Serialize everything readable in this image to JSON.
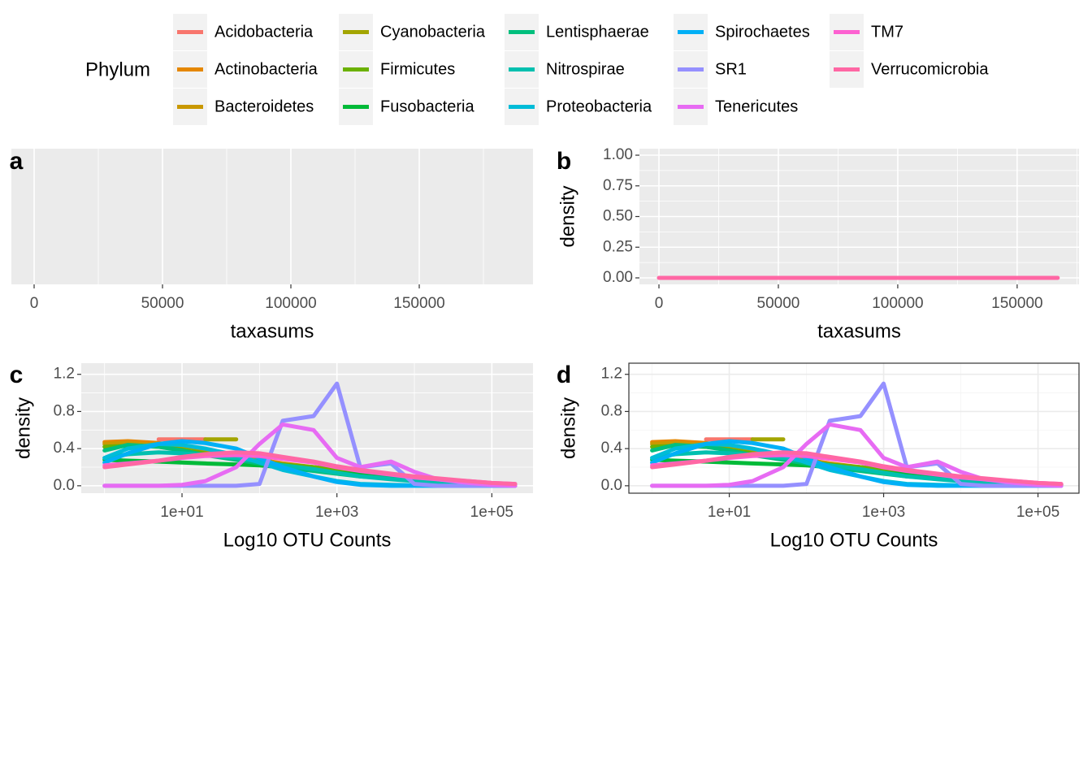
{
  "legend": {
    "title": "Phylum"
  },
  "chart_data": [
    {
      "type": "density",
      "panel_label": "a",
      "theme": "gray",
      "x_label": "taxasums",
      "xlim": [
        -8860,
        194300
      ],
      "xticks": [
        0,
        50000,
        100000,
        150000
      ],
      "minor_xticks": [
        25000,
        75000,
        125000,
        175000
      ],
      "x": [],
      "series": []
    },
    {
      "type": "density",
      "panel_label": "b",
      "theme": "gray",
      "x_label": "taxasums",
      "y_label": "density",
      "xlim": [
        -8170,
        175900
      ],
      "xticks": [
        0,
        50000,
        100000,
        150000
      ],
      "minor_xticks": [
        25000,
        75000,
        125000,
        175000
      ],
      "ylim": [
        -0.053,
        1.053
      ],
      "yticks": [
        {
          "value": 0,
          "label": "0.00"
        },
        {
          "value": 0.25,
          "label": "0.25"
        },
        {
          "value": 0.5,
          "label": "0.50"
        },
        {
          "value": 0.75,
          "label": "0.75"
        },
        {
          "value": 1,
          "label": "1.00"
        }
      ],
      "minor_yticks": [
        0.125,
        0.375,
        0.625,
        0.875
      ],
      "x": [
        0,
        167000
      ],
      "series": [
        {
          "name": "Verrucomicrobia",
          "color": "#FF67A4",
          "values": [
            0,
            0
          ]
        }
      ]
    },
    {
      "type": "density",
      "panel_label": "c",
      "theme": "gray",
      "x_label": "Log10 OTU Counts",
      "y_label": "density",
      "xscale": "log",
      "xlim": [
        0.5,
        340000
      ],
      "xticks": [
        {
          "value": 10,
          "label": "1e+01"
        },
        {
          "value": 1000,
          "label": "1e+03"
        },
        {
          "value": 100000,
          "label": "1e+05"
        }
      ],
      "minor_xticks": [
        1,
        100,
        10000
      ],
      "ylim": [
        -0.08,
        1.32
      ],
      "yticks": [
        {
          "value": 0,
          "label": "0.0"
        },
        0.4,
        0.8,
        1.2
      ],
      "minor_yticks": [
        0.2,
        0.6,
        1.0
      ],
      "x": [
        1,
        2,
        5,
        10,
        20,
        50,
        100,
        200,
        500,
        1000,
        2000,
        5000,
        10000,
        20000,
        50000,
        100000,
        200000
      ],
      "series": [
        {
          "name": "Acidobacteria",
          "color": "#F8766D",
          "values": [
            null,
            null,
            0.5,
            0.5,
            0.5,
            null,
            null,
            null,
            null,
            null,
            null,
            null,
            null,
            null,
            null,
            null,
            null
          ]
        },
        {
          "name": "Actinobacteria",
          "color": "#E58700",
          "values": [
            0.47,
            0.48,
            0.46,
            0.42,
            0.38,
            0.33,
            0.28,
            0.24,
            0.2,
            0.17,
            0.14,
            0.1,
            0.07,
            0.05,
            0.03,
            0.02,
            0.01
          ]
        },
        {
          "name": "Bacteroidetes",
          "color": "#C99800",
          "values": [
            0.45,
            0.46,
            0.44,
            0.4,
            0.36,
            0.31,
            0.27,
            0.23,
            0.2,
            0.17,
            0.15,
            0.12,
            0.09,
            0.06,
            0.04,
            0.02,
            0.01
          ]
        },
        {
          "name": "Cyanobacteria",
          "color": "#A3A500",
          "values": [
            null,
            null,
            null,
            null,
            0.5,
            0.5,
            null,
            null,
            null,
            null,
            null,
            null,
            null,
            null,
            null,
            null,
            null
          ]
        },
        {
          "name": "Firmicutes",
          "color": "#6BB100",
          "values": [
            0.42,
            0.43,
            0.42,
            0.39,
            0.35,
            0.3,
            0.26,
            0.23,
            0.2,
            0.17,
            0.14,
            0.11,
            0.08,
            0.06,
            0.04,
            0.02,
            0.01
          ]
        },
        {
          "name": "Fusobacteria",
          "color": "#00BA38",
          "values": [
            0.28,
            0.27,
            0.26,
            0.25,
            0.24,
            0.23,
            0.22,
            0.2,
            0.17,
            0.14,
            0.12,
            0.09,
            0.07,
            0.05,
            0.03,
            0.02,
            0.01
          ]
        },
        {
          "name": "Lentisphaerae",
          "color": "#00BF7D",
          "values": [
            0.38,
            0.44,
            0.42,
            0.38,
            0.33,
            0.28,
            0.24,
            0.2,
            0.16,
            0.13,
            0.1,
            0.08,
            0.06,
            0.04,
            0.03,
            0.02,
            0.01
          ]
        },
        {
          "name": "Nitrospirae",
          "color": "#00C0AF",
          "values": [
            0.3,
            0.34,
            0.36,
            0.35,
            0.33,
            0.3,
            0.26,
            0.22,
            0.18,
            0.14,
            0.1,
            0.07,
            0.05,
            0.03,
            0.02,
            0.01,
            0.01
          ]
        },
        {
          "name": "Proteobacteria",
          "color": "#00BCD8",
          "values": [
            0.3,
            0.4,
            0.45,
            0.44,
            0.4,
            0.33,
            0.25,
            0.17,
            0.1,
            0.05,
            0.02,
            0.01,
            0.005,
            0,
            0,
            0,
            0
          ]
        },
        {
          "name": "Spirochaetes",
          "color": "#00B0F6",
          "values": [
            0.25,
            0.35,
            0.45,
            0.48,
            0.46,
            0.4,
            0.3,
            0.2,
            0.1,
            0.04,
            0.01,
            0,
            0,
            0,
            0,
            0,
            0
          ]
        },
        {
          "name": "SR1",
          "color": "#9590FF",
          "values": [
            0,
            0,
            0,
            0,
            0,
            0,
            0.02,
            0.7,
            0.75,
            1.1,
            0.2,
            0.24,
            0.02,
            0,
            0,
            0,
            0
          ]
        },
        {
          "name": "Tenericutes",
          "color": "#E76BF3",
          "values": [
            0,
            0,
            0,
            0.01,
            0.05,
            0.2,
            0.45,
            0.66,
            0.6,
            0.3,
            0.2,
            0.26,
            0.15,
            0.07,
            0.03,
            0.01,
            0
          ]
        },
        {
          "name": "TM7",
          "color": "#FD61D1",
          "values": [
            0.22,
            0.24,
            0.27,
            0.3,
            0.32,
            0.33,
            0.32,
            0.29,
            0.25,
            0.2,
            0.16,
            0.12,
            0.09,
            0.07,
            0.05,
            0.03,
            0.02
          ]
        },
        {
          "name": "Verrucomicrobia",
          "color": "#FF67A4",
          "values": [
            0.2,
            0.23,
            0.27,
            0.31,
            0.34,
            0.36,
            0.35,
            0.31,
            0.26,
            0.21,
            0.17,
            0.13,
            0.1,
            0.08,
            0.05,
            0.03,
            0.02
          ]
        }
      ]
    },
    {
      "type": "density",
      "panel_label": "d",
      "theme": "bw",
      "x_label": "Log10 OTU Counts",
      "y_label": "density",
      "xscale": "log",
      "xlim": [
        0.5,
        340000
      ],
      "xticks": [
        {
          "value": 10,
          "label": "1e+01"
        },
        {
          "value": 1000,
          "label": "1e+03"
        },
        {
          "value": 100000,
          "label": "1e+05"
        }
      ],
      "minor_xticks": [
        1,
        100,
        10000
      ],
      "ylim": [
        -0.08,
        1.32
      ],
      "yticks": [
        {
          "value": 0,
          "label": "0.0"
        },
        0.4,
        0.8,
        1.2
      ],
      "minor_yticks": [
        0.2,
        0.6,
        1.0
      ],
      "x": [
        1,
        2,
        5,
        10,
        20,
        50,
        100,
        200,
        500,
        1000,
        2000,
        5000,
        10000,
        20000,
        50000,
        100000,
        200000
      ],
      "series": [
        {
          "name": "Acidobacteria",
          "color": "#F8766D",
          "values": [
            null,
            null,
            0.5,
            0.5,
            0.5,
            null,
            null,
            null,
            null,
            null,
            null,
            null,
            null,
            null,
            null,
            null,
            null
          ]
        },
        {
          "name": "Actinobacteria",
          "color": "#E58700",
          "values": [
            0.47,
            0.48,
            0.46,
            0.42,
            0.38,
            0.33,
            0.28,
            0.24,
            0.2,
            0.17,
            0.14,
            0.1,
            0.07,
            0.05,
            0.03,
            0.02,
            0.01
          ]
        },
        {
          "name": "Bacteroidetes",
          "color": "#C99800",
          "values": [
            0.45,
            0.46,
            0.44,
            0.4,
            0.36,
            0.31,
            0.27,
            0.23,
            0.2,
            0.17,
            0.15,
            0.12,
            0.09,
            0.06,
            0.04,
            0.02,
            0.01
          ]
        },
        {
          "name": "Cyanobacteria",
          "color": "#A3A500",
          "values": [
            null,
            null,
            null,
            null,
            0.5,
            0.5,
            null,
            null,
            null,
            null,
            null,
            null,
            null,
            null,
            null,
            null,
            null
          ]
        },
        {
          "name": "Firmicutes",
          "color": "#6BB100",
          "values": [
            0.42,
            0.43,
            0.42,
            0.39,
            0.35,
            0.3,
            0.26,
            0.23,
            0.2,
            0.17,
            0.14,
            0.11,
            0.08,
            0.06,
            0.04,
            0.02,
            0.01
          ]
        },
        {
          "name": "Fusobacteria",
          "color": "#00BA38",
          "values": [
            0.28,
            0.27,
            0.26,
            0.25,
            0.24,
            0.23,
            0.22,
            0.2,
            0.17,
            0.14,
            0.12,
            0.09,
            0.07,
            0.05,
            0.03,
            0.02,
            0.01
          ]
        },
        {
          "name": "Lentisphaerae",
          "color": "#00BF7D",
          "values": [
            0.38,
            0.44,
            0.42,
            0.38,
            0.33,
            0.28,
            0.24,
            0.2,
            0.16,
            0.13,
            0.1,
            0.08,
            0.06,
            0.04,
            0.03,
            0.02,
            0.01
          ]
        },
        {
          "name": "Nitrospirae",
          "color": "#00C0AF",
          "values": [
            0.3,
            0.34,
            0.36,
            0.35,
            0.33,
            0.3,
            0.26,
            0.22,
            0.18,
            0.14,
            0.1,
            0.07,
            0.05,
            0.03,
            0.02,
            0.01,
            0.01
          ]
        },
        {
          "name": "Proteobacteria",
          "color": "#00BCD8",
          "values": [
            0.3,
            0.4,
            0.45,
            0.44,
            0.4,
            0.33,
            0.25,
            0.17,
            0.1,
            0.05,
            0.02,
            0.01,
            0.005,
            0,
            0,
            0,
            0
          ]
        },
        {
          "name": "Spirochaetes",
          "color": "#00B0F6",
          "values": [
            0.25,
            0.35,
            0.45,
            0.48,
            0.46,
            0.4,
            0.3,
            0.2,
            0.1,
            0.04,
            0.01,
            0,
            0,
            0,
            0,
            0,
            0
          ]
        },
        {
          "name": "SR1",
          "color": "#9590FF",
          "values": [
            0,
            0,
            0,
            0,
            0,
            0,
            0.02,
            0.7,
            0.75,
            1.1,
            0.2,
            0.24,
            0.02,
            0,
            0,
            0,
            0
          ]
        },
        {
          "name": "Tenericutes",
          "color": "#E76BF3",
          "values": [
            0,
            0,
            0,
            0.01,
            0.05,
            0.2,
            0.45,
            0.66,
            0.6,
            0.3,
            0.2,
            0.26,
            0.15,
            0.07,
            0.03,
            0.01,
            0
          ]
        },
        {
          "name": "TM7",
          "color": "#FD61D1",
          "values": [
            0.22,
            0.24,
            0.27,
            0.3,
            0.32,
            0.33,
            0.32,
            0.29,
            0.25,
            0.2,
            0.16,
            0.12,
            0.09,
            0.07,
            0.05,
            0.03,
            0.02
          ]
        },
        {
          "name": "Verrucomicrobia",
          "color": "#FF67A4",
          "values": [
            0.2,
            0.23,
            0.27,
            0.31,
            0.34,
            0.36,
            0.35,
            0.31,
            0.26,
            0.21,
            0.17,
            0.13,
            0.1,
            0.08,
            0.05,
            0.03,
            0.02
          ]
        }
      ]
    }
  ]
}
